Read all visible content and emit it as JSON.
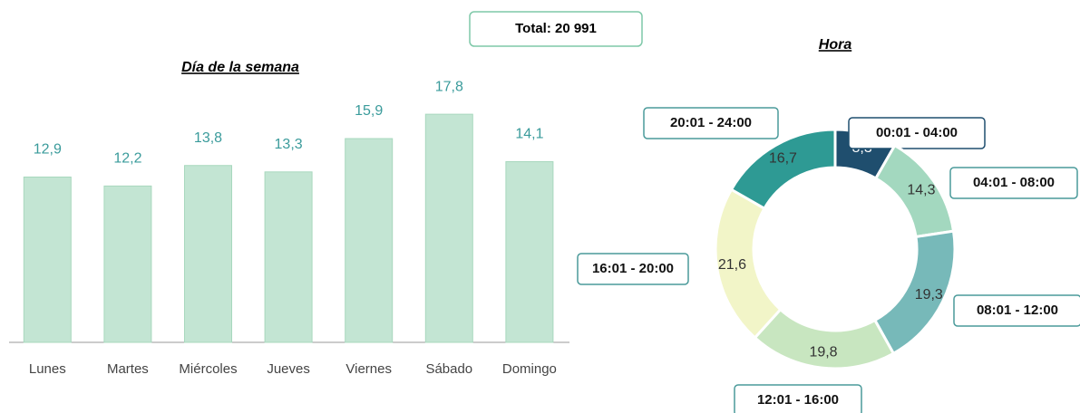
{
  "total_label": "Total: 20 991",
  "chart_data": [
    {
      "type": "bar",
      "title": "Día de la semana",
      "categories": [
        "Lunes",
        "Martes",
        "Miércoles",
        "Jueves",
        "Viernes",
        "Sábado",
        "Domingo"
      ],
      "values": [
        12.9,
        12.2,
        13.8,
        13.3,
        15.9,
        17.8,
        14.1
      ],
      "value_labels": [
        "12,9",
        "12,2",
        "13,8",
        "13,3",
        "15,9",
        "17,8",
        "14,1"
      ],
      "color": "#c3e5d3",
      "ylim": [
        0,
        20
      ]
    },
    {
      "type": "donut",
      "title": "Hora",
      "categories": [
        "00:01 - 04:00",
        "04:01 - 08:00",
        "08:01 - 12:00",
        "12:01 - 16:00",
        "16:01 - 20:00",
        "20:01 - 24:00"
      ],
      "values": [
        8.3,
        14.3,
        19.3,
        19.8,
        21.6,
        16.7
      ],
      "value_labels": [
        "8,3",
        "14,3",
        "19,3",
        "19,8",
        "21,6",
        "16,7"
      ],
      "colors": [
        "#1f4e6e",
        "#a3d8bf",
        "#77b9b9",
        "#c8e6c0",
        "#f2f5c8",
        "#2e9a94"
      ]
    }
  ]
}
